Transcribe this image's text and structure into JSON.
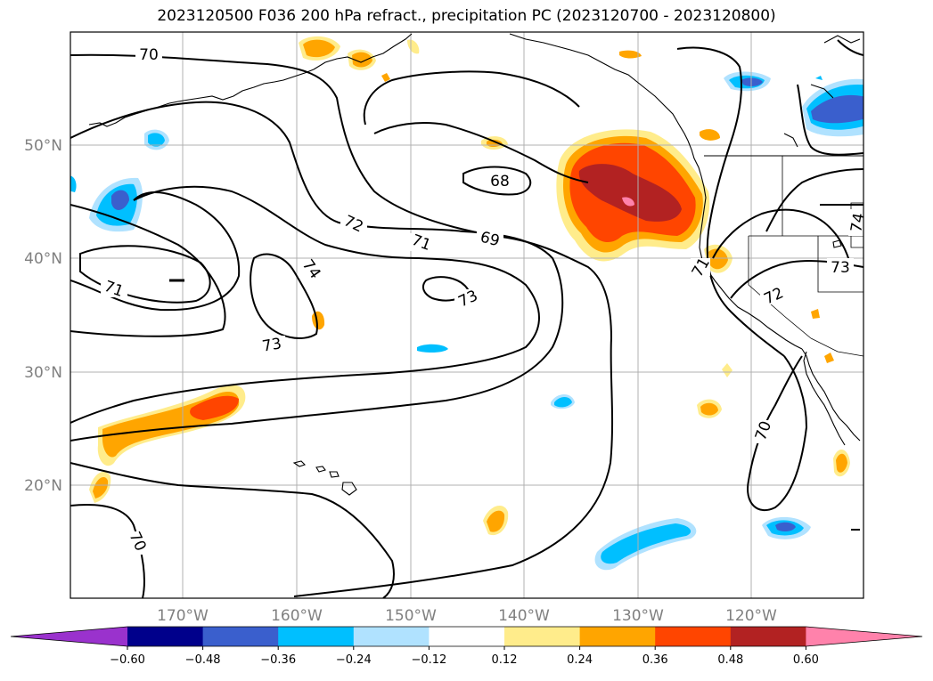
{
  "title": "2023120500 F036 200 hPa refract., precipitation PC (2023120700 - 2023120800)",
  "latitude_labels": [
    "50°N",
    "40°N",
    "30°N",
    "20°N"
  ],
  "longitude_labels": [
    "170°W",
    "160°W",
    "150°W",
    "140°W",
    "130°W",
    "120°W"
  ],
  "contour_labels": [
    "70",
    "68",
    "72",
    "71",
    "69",
    "74",
    "71",
    "73",
    "73",
    "71",
    "72",
    "73",
    "74",
    "70",
    "70"
  ],
  "colorbar": {
    "tick_labels": [
      "−0.60",
      "−0.48",
      "−0.36",
      "−0.24",
      "−0.12",
      "0.12",
      "0.24",
      "0.36",
      "0.48",
      "0.60"
    ],
    "colors": [
      "#9a32cd",
      "#00008b",
      "#3a5fcd",
      "#00bfff",
      "#b0e2ff",
      "#ffffff",
      "#ffec8b",
      "#ffa500",
      "#ff4500",
      "#b22222",
      "#ff82ab"
    ]
  },
  "colors": {
    "grid": "#b0b0b0",
    "coast": "#000000",
    "contour": "#000000"
  }
}
